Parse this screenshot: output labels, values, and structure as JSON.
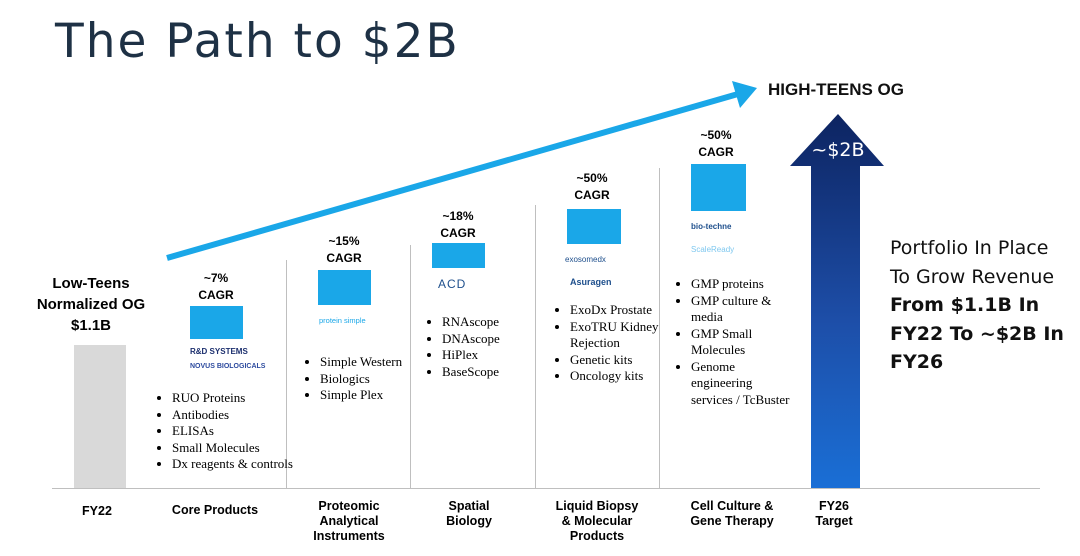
{
  "title": "The Path to $2B",
  "growth_label": "HIGH-TEENS OG",
  "fy22_header": {
    "line1": "Low-Teens",
    "line2": "Normalized OG",
    "line3": "$1.1B"
  },
  "target_value": "~$2B",
  "portfolio_text": {
    "p1": "Portfolio In Place To Grow Revenue ",
    "b1": "From $1.1B In FY22 To ~$2B In FY26"
  },
  "colors": {
    "accent_blue": "#1aa7e8",
    "navy": "#0d2461",
    "bar_gray": "#d9d9d9",
    "title": "#1e3145"
  },
  "chart_data": {
    "type": "bar",
    "title": "The Path to $2B",
    "categories": [
      "FY22",
      "Core Products",
      "Proteomic Analytical Instruments",
      "Spatial Biology",
      "Liquid Biopsy & Molecular Products",
      "Cell Culture & Gene Therapy",
      "FY26 Target"
    ],
    "category_labels": [
      {
        "l1": "FY22",
        "l2": "",
        "l3": ""
      },
      {
        "l1": "Core Products",
        "l2": "",
        "l3": ""
      },
      {
        "l1": "Proteomic",
        "l2": "Analytical",
        "l3": "Instruments"
      },
      {
        "l1": "Spatial",
        "l2": "Biology",
        "l3": ""
      },
      {
        "l1": "Liquid Biopsy",
        "l2": "& Molecular",
        "l3": "Products"
      },
      {
        "l1": "Cell Culture &",
        "l2": "Gene Therapy",
        "l3": ""
      },
      {
        "l1": "FY26",
        "l2": "Target",
        "l3": ""
      }
    ],
    "start_revenue": "$1.1B",
    "target_revenue": "~$2B",
    "growth": [
      "~7% CAGR",
      "~15% CAGR",
      "~18% CAGR",
      "~50% CAGR",
      "~50% CAGR"
    ],
    "segments": [
      {
        "cagr_pct": "~7%",
        "cagr_word": "CAGR",
        "logos": [
          "R&D SYSTEMS",
          "NOVUS BIOLOGICALS"
        ],
        "bullets": [
          "RUO Proteins",
          "Antibodies",
          "ELISAs",
          "Small Molecules",
          "Dx reagents & controls"
        ]
      },
      {
        "cagr_pct": "~15%",
        "cagr_word": "CAGR",
        "logos": [
          "protein simple"
        ],
        "bullets": [
          "Simple Western",
          "Biologics",
          "Simple Plex"
        ]
      },
      {
        "cagr_pct": "~18%",
        "cagr_word": "CAGR",
        "logos": [
          "ACD"
        ],
        "bullets": [
          "RNAscope",
          "DNAscope",
          "HiPlex",
          "BaseScope"
        ]
      },
      {
        "cagr_pct": "~50%",
        "cagr_word": "CAGR",
        "logos": [
          "exosomedx",
          "Asuragen"
        ],
        "bullets": [
          "ExoDx Prostate",
          "ExoTRU Kidney Rejection",
          "Genetic kits",
          "Oncology kits"
        ]
      },
      {
        "cagr_pct": "~50%",
        "cagr_word": "CAGR",
        "logos": [
          "bio-techne",
          "ScaleReady"
        ],
        "bullets": [
          "GMP proteins",
          "GMP culture & media",
          "GMP Small Molecules",
          "Genome engineering services / TcBuster"
        ]
      }
    ]
  }
}
